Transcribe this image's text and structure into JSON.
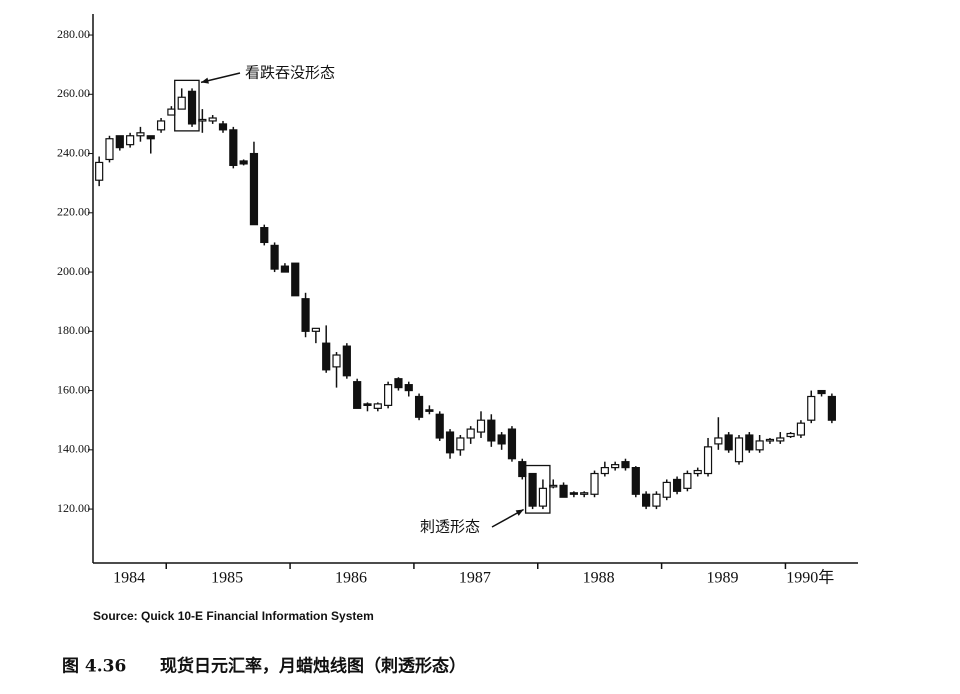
{
  "chart_data": {
    "type": "candlestick",
    "categories": [
      null,
      null,
      null,
      null,
      null,
      null,
      null,
      null,
      null,
      null,
      null,
      null,
      null,
      null,
      null,
      null,
      null,
      null,
      null,
      null,
      null,
      null,
      null,
      null,
      null,
      null,
      null,
      null,
      null,
      null,
      null,
      null,
      null,
      null,
      null,
      null,
      null,
      null,
      null,
      null,
      null,
      null,
      null,
      null,
      null,
      null,
      null,
      null,
      null,
      null,
      null,
      null,
      null,
      null,
      null,
      null,
      null,
      null,
      null,
      null,
      null,
      null,
      null,
      null,
      null,
      null,
      null,
      null,
      null,
      null,
      null,
      null
    ],
    "open": [
      231,
      238,
      246,
      243,
      246,
      246,
      248,
      253,
      255,
      261,
      251,
      251,
      250,
      248,
      237.5,
      240,
      215,
      209,
      202,
      203,
      191,
      180,
      176,
      168,
      175,
      163,
      155.5,
      154,
      155,
      164,
      162,
      158,
      153.5,
      152,
      146,
      140,
      144,
      146,
      150,
      145,
      147,
      136,
      132,
      121,
      127.5,
      128,
      125.5,
      125,
      125,
      132,
      134,
      136,
      134,
      125,
      121,
      124,
      130,
      127,
      132,
      132,
      142,
      145,
      136,
      145,
      140,
      143,
      143,
      144.5,
      145,
      150,
      160,
      158
    ],
    "high": [
      239,
      246,
      246,
      247,
      249,
      246,
      252,
      256,
      262,
      262,
      255,
      253,
      251,
      249,
      238,
      244,
      216,
      210,
      203,
      203,
      193,
      181,
      182,
      173,
      176,
      164,
      156,
      156,
      163,
      164.5,
      163,
      159,
      155,
      153,
      147,
      145,
      148,
      153,
      152,
      146,
      148,
      137,
      132,
      130,
      130,
      129,
      126,
      126,
      133,
      136,
      136,
      137,
      134.5,
      126,
      126,
      130,
      131,
      133,
      134,
      144,
      151,
      146,
      145,
      146,
      145,
      144,
      146,
      146,
      150,
      160,
      160,
      159
    ],
    "low": [
      229,
      237,
      241,
      242,
      244,
      240,
      247,
      253,
      255,
      249,
      247,
      250,
      247,
      235,
      236,
      216,
      209,
      200,
      200,
      192,
      178,
      176,
      166,
      161,
      164,
      154,
      153,
      153,
      154,
      160,
      158,
      150,
      152,
      143,
      137,
      138,
      142,
      144,
      141,
      140,
      136,
      130,
      120,
      120,
      127,
      124,
      124,
      124,
      124,
      131,
      133,
      133,
      124,
      120,
      120,
      123,
      125,
      126,
      131,
      131,
      140,
      139,
      135,
      139,
      139,
      142,
      142,
      144,
      144,
      149,
      158,
      149
    ],
    "close": [
      237,
      245,
      242,
      246,
      247,
      245,
      251,
      255,
      259,
      250,
      251.5,
      252,
      248,
      236,
      236.5,
      216,
      210,
      201,
      200,
      192,
      180,
      181,
      167,
      172,
      165,
      154,
      155,
      155.5,
      162,
      161,
      160,
      151,
      153,
      144,
      139,
      144,
      147,
      150,
      143,
      142,
      137,
      131,
      121,
      127,
      128,
      124,
      125,
      125.5,
      132,
      134,
      135,
      134,
      125,
      121,
      125,
      129,
      126,
      132,
      133,
      141,
      144,
      140,
      144,
      140,
      143,
      143.5,
      144,
      145.5,
      149,
      158,
      159,
      150
    ],
    "ylim": [
      101.8,
      287.1
    ],
    "yticks": [
      {
        "value": 120,
        "label": "120.00"
      },
      {
        "value": 140,
        "label": "140.00"
      },
      {
        "value": 160,
        "label": "160.00"
      },
      {
        "value": 180,
        "label": "180.00"
      },
      {
        "value": 200,
        "label": "200.00"
      },
      {
        "value": 220,
        "label": "220.00"
      },
      {
        "value": 240,
        "label": "240.00"
      },
      {
        "value": 260,
        "label": "260.00"
      },
      {
        "value": 280,
        "label": "280.00"
      }
    ],
    "year_groups": [
      {
        "label": "1984",
        "count": 7
      },
      {
        "label": "1985",
        "count": 12
      },
      {
        "label": "1986",
        "count": 12
      },
      {
        "label": "1987",
        "count": 12
      },
      {
        "label": "1988",
        "count": 12
      },
      {
        "label": "1989",
        "count": 12
      },
      {
        "label": "1990年",
        "count": 5
      }
    ],
    "annotations": [
      {
        "text": "看跌吞没形态",
        "first": 8,
        "last": 9
      },
      {
        "text": "刺透形态",
        "first": 42,
        "last": 43
      }
    ],
    "up_color": "#ffffff",
    "down_color": "#111111",
    "source": "Source: Quick 10-E Financial Information System",
    "figure_number": "图 4.36",
    "caption": "现货日元汇率，月蜡烛线图（刺透形态）"
  }
}
